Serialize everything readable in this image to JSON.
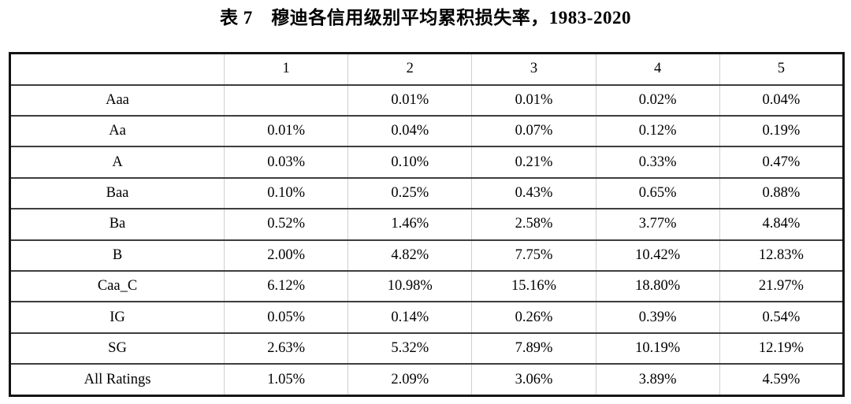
{
  "title": "表 7　穆迪各信用级别平均累积损失率，1983-2020",
  "table": {
    "corner_label": "",
    "column_headers": [
      "1",
      "2",
      "3",
      "4",
      "5"
    ],
    "rows": [
      {
        "label": "Aaa",
        "values": [
          "",
          "0.01%",
          "0.01%",
          "0.02%",
          "0.04%"
        ]
      },
      {
        "label": "Aa",
        "values": [
          "0.01%",
          "0.04%",
          "0.07%",
          "0.12%",
          "0.19%"
        ]
      },
      {
        "label": "A",
        "values": [
          "0.03%",
          "0.10%",
          "0.21%",
          "0.33%",
          "0.47%"
        ]
      },
      {
        "label": "Baa",
        "values": [
          "0.10%",
          "0.25%",
          "0.43%",
          "0.65%",
          "0.88%"
        ]
      },
      {
        "label": "Ba",
        "values": [
          "0.52%",
          "1.46%",
          "2.58%",
          "3.77%",
          "4.84%"
        ]
      },
      {
        "label": "B",
        "values": [
          "2.00%",
          "4.82%",
          "7.75%",
          "10.42%",
          "12.83%"
        ]
      },
      {
        "label": "Caa_C",
        "values": [
          "6.12%",
          "10.98%",
          "15.16%",
          "18.80%",
          "21.97%"
        ]
      },
      {
        "label": "IG",
        "values": [
          "0.05%",
          "0.14%",
          "0.26%",
          "0.39%",
          "0.54%"
        ]
      },
      {
        "label": "SG",
        "values": [
          "2.63%",
          "5.32%",
          "7.89%",
          "10.19%",
          "12.19%"
        ]
      },
      {
        "label": "All Ratings",
        "values": [
          "1.05%",
          "2.09%",
          "3.06%",
          "3.89%",
          "4.59%"
        ]
      }
    ]
  },
  "colors": {
    "background": "#ffffff",
    "text": "#000000",
    "outer_border": "#141414",
    "row_separator": "#3d3d3d",
    "column_separator": "#cfcfcf"
  }
}
